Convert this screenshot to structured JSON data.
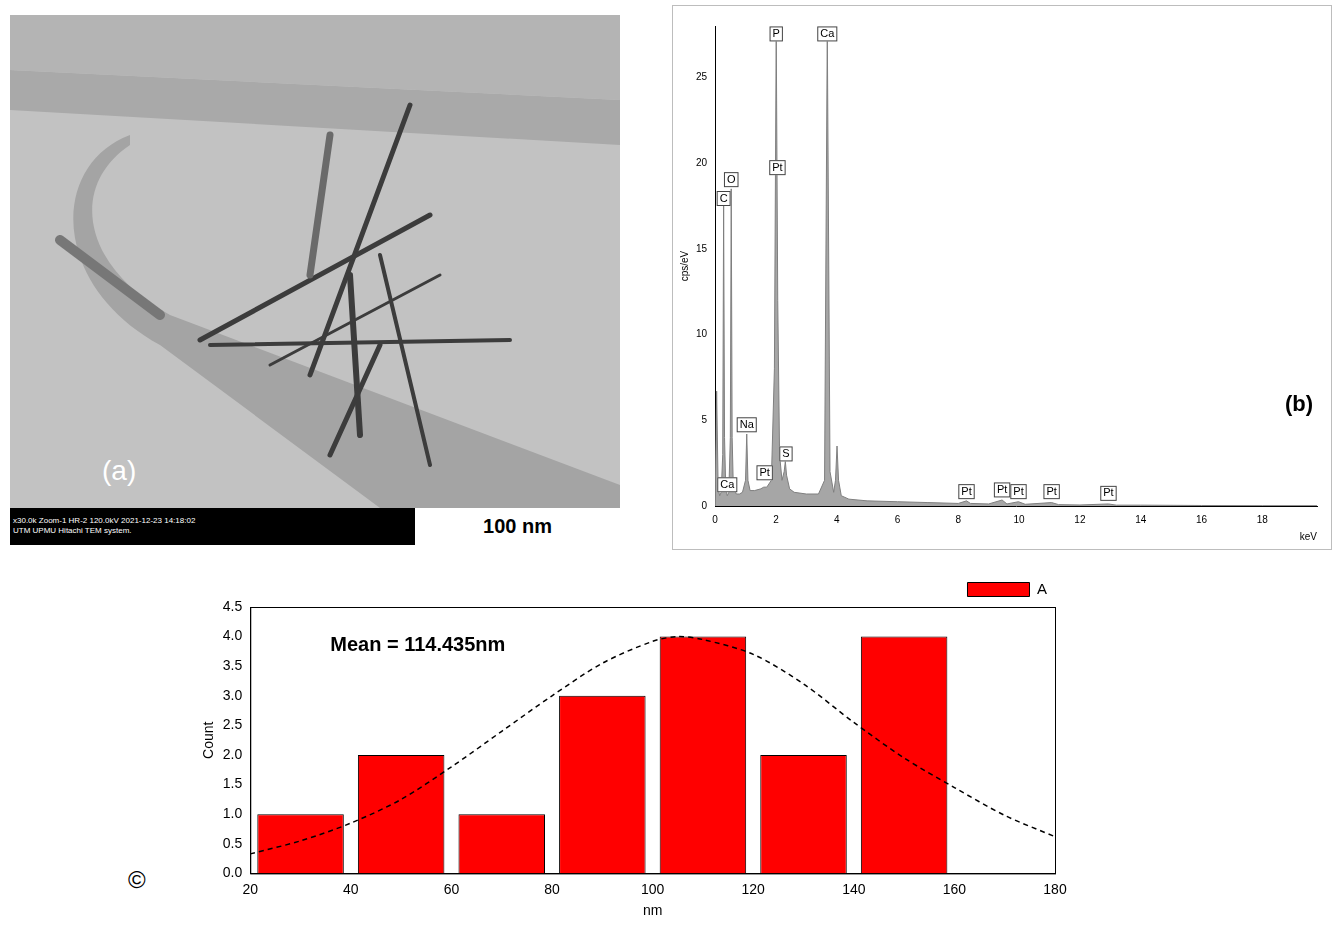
{
  "image_panel": {
    "label": "(a)",
    "scale_label": "100 nm",
    "info": [
      "x30.0k Zoom-1 HR-2 120.0kV 2021-12-23 14:18:02",
      "UTM UPMU Hitachi TEM system."
    ]
  },
  "chart_data": [
    {
      "type": "area",
      "panel": "(b)",
      "x_label": "keV",
      "y_label": "cps/eV",
      "x": [
        0.0,
        0.05,
        0.1,
        0.15,
        0.2,
        0.25,
        0.28,
        0.31,
        0.35,
        0.4,
        0.45,
        0.5,
        0.53,
        0.56,
        0.6,
        0.7,
        0.8,
        0.9,
        1.0,
        1.04,
        1.08,
        1.15,
        1.3,
        1.5,
        1.6,
        1.7,
        1.85,
        1.95,
        2.01,
        2.06,
        2.12,
        2.2,
        2.27,
        2.31,
        2.35,
        2.45,
        2.6,
        3.0,
        3.4,
        3.6,
        3.69,
        3.78,
        3.9,
        3.96,
        4.01,
        4.06,
        4.15,
        4.4,
        5,
        6,
        7,
        8,
        8.27,
        8.4,
        9,
        9.44,
        9.6,
        9.98,
        10.2,
        11.07,
        11.3,
        12,
        12.94,
        13.2,
        14,
        16,
        18,
        19.8
      ],
      "values": [
        0,
        6.7,
        1.0,
        0.6,
        0.8,
        3,
        17.5,
        4,
        1.0,
        0.6,
        0.8,
        4,
        18.5,
        4,
        1.0,
        0.7,
        0.7,
        0.8,
        1.5,
        4.2,
        1.5,
        0.9,
        0.9,
        1.0,
        1.1,
        1.1,
        1.5,
        8,
        27.8,
        12,
        3,
        1.5,
        2,
        2.6,
        1.8,
        1.0,
        0.8,
        0.7,
        0.7,
        1.5,
        27.8,
        2,
        0.8,
        1.5,
        3.5,
        1.5,
        0.6,
        0.4,
        0.3,
        0.25,
        0.2,
        0.15,
        0.3,
        0.15,
        0.12,
        0.35,
        0.12,
        0.25,
        0.1,
        0.2,
        0.08,
        0.06,
        0.12,
        0.05,
        0.05,
        0.03,
        0.02,
        0.02
      ],
      "color": "#a6a6a6",
      "xlim": [
        0,
        19.8
      ],
      "xticks": [
        0,
        2,
        4,
        6,
        8,
        10,
        12,
        14,
        16,
        18
      ],
      "ylim": [
        0,
        28
      ],
      "yticks": [
        0,
        5,
        10,
        15,
        20,
        25
      ],
      "grid": false,
      "peak_labels": [
        {
          "text": "C",
          "x": 0.28,
          "y": 17.5
        },
        {
          "text": "O",
          "x": 0.53,
          "y": 18.6
        },
        {
          "text": "Ca",
          "x": 0.4,
          "y": 0.8
        },
        {
          "text": "Na",
          "x": 1.04,
          "y": 4.3
        },
        {
          "text": "Pt",
          "x": 1.63,
          "y": 1.5
        },
        {
          "text": "P",
          "x": 2.01,
          "y": 27.1
        },
        {
          "text": "Pt",
          "x": 2.05,
          "y": 19.3
        },
        {
          "text": "S",
          "x": 2.33,
          "y": 2.6
        },
        {
          "text": "Ca",
          "x": 3.69,
          "y": 27.1
        },
        {
          "text": "Pt",
          "x": 8.27,
          "y": 0.4
        },
        {
          "text": "Pt",
          "x": 9.44,
          "y": 0.5
        },
        {
          "text": "Pt",
          "x": 9.98,
          "y": 0.4
        },
        {
          "text": "Pt",
          "x": 11.07,
          "y": 0.4
        },
        {
          "text": "Pt",
          "x": 12.94,
          "y": 0.3
        }
      ]
    },
    {
      "type": "histogram",
      "panel": "©",
      "annotations": [
        "Mean = 114.435nm"
      ],
      "x_label": "nm",
      "y_label": "Count",
      "bins": [
        20,
        40,
        60,
        80,
        100,
        120,
        140,
        160
      ],
      "series": [
        {
          "name": "A",
          "type": "bar",
          "color": "#ff0000",
          "values": [
            1,
            2,
            1,
            3,
            4,
            2,
            4
          ]
        },
        {
          "type": "line",
          "color": "#000000",
          "line_style": "dashed",
          "x": [
            20,
            30,
            40,
            50,
            60,
            70,
            80,
            90,
            100,
            105,
            110,
            120,
            130,
            140,
            150,
            160,
            170,
            180
          ],
          "values": [
            0.33,
            0.55,
            0.85,
            1.25,
            1.8,
            2.4,
            3.0,
            3.55,
            3.92,
            4.0,
            3.95,
            3.7,
            3.2,
            2.55,
            1.95,
            1.45,
            0.98,
            0.62
          ]
        }
      ],
      "xlim": [
        20,
        180
      ],
      "xticks": [
        20,
        40,
        60,
        80,
        100,
        120,
        140,
        160,
        180
      ],
      "ylim": [
        0,
        4.5
      ],
      "yticks": [
        {
          "value": 0,
          "label": "0.0"
        },
        0.5,
        {
          "value": 1,
          "label": "1.0"
        },
        1.5,
        {
          "value": 2,
          "label": "2.0"
        },
        2.5,
        {
          "value": 3,
          "label": "3.0"
        },
        3.5,
        {
          "value": 4,
          "label": "4.0"
        },
        4.5
      ],
      "grid": false,
      "legend": "top-right"
    }
  ]
}
